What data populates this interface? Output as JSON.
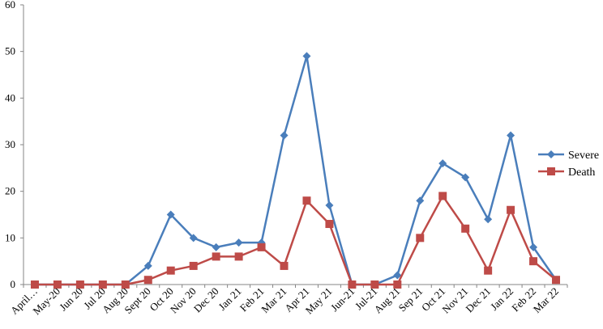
{
  "chart_data": {
    "type": "line",
    "title": "",
    "xlabel": "",
    "ylabel": "",
    "ylim": [
      0,
      60
    ],
    "yticks": [
      0,
      10,
      20,
      30,
      40,
      50,
      60
    ],
    "grid": false,
    "legend_position": "right",
    "categories": [
      "April…",
      "May-20",
      "Jun 20",
      "Jul 20",
      "Aug 20",
      "Sept 20",
      "Oct 20",
      "Nov 20",
      "Dec 20",
      "Jan 21",
      "Feb 21",
      "Mar 21",
      "Apr 21",
      "May 21",
      "Jun-21",
      "Jul-21",
      "Aug 21",
      "Sep 21",
      "Oct 21",
      "Nov 21",
      "Dec 21",
      "Jan 22",
      "Feb 22",
      "Mar 22"
    ],
    "series": [
      {
        "name": "Severe",
        "color": "#4a7ebb",
        "marker": "diamond",
        "values": [
          0,
          0,
          0,
          0,
          0,
          4,
          15,
          10,
          8,
          9,
          9,
          32,
          49,
          17,
          0,
          0,
          2,
          18,
          26,
          23,
          14,
          32,
          8,
          1
        ]
      },
      {
        "name": "Death",
        "color": "#be4b48",
        "marker": "square",
        "values": [
          0,
          0,
          0,
          0,
          0,
          1,
          3,
          4,
          6,
          6,
          8,
          4,
          18,
          13,
          0,
          0,
          0,
          10,
          19,
          12,
          3,
          16,
          5,
          1
        ]
      }
    ]
  }
}
